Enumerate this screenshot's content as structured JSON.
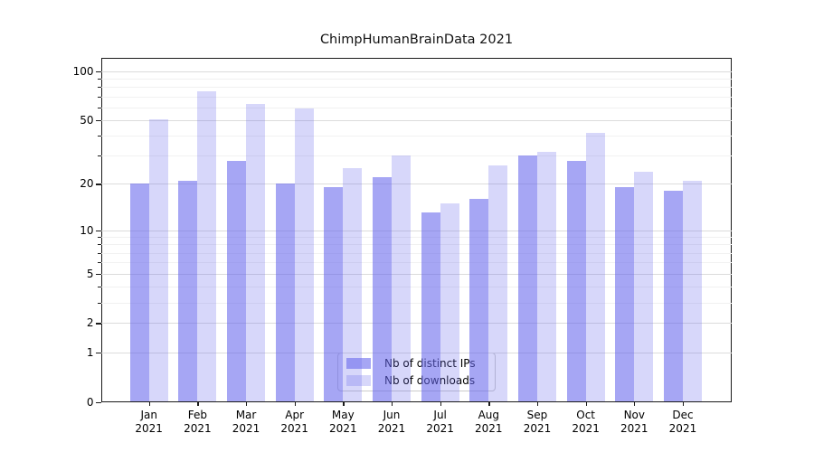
{
  "title": "ChimpHumanBrainData 2021",
  "chart_data": {
    "type": "bar",
    "title": "ChimpHumanBrainData 2021",
    "categories": [
      "Jan",
      "Feb",
      "Mar",
      "Apr",
      "May",
      "Jun",
      "Jul",
      "Aug",
      "Sep",
      "Oct",
      "Nov",
      "Dec"
    ],
    "x_year_label": "2021",
    "series": [
      {
        "name": "Nb of distinct IPs",
        "values": [
          20,
          21,
          28,
          20,
          19,
          22,
          13,
          16,
          30,
          28,
          19,
          18
        ],
        "color": "#6666ec",
        "alpha": 0.58
      },
      {
        "name": "Nb of downloads",
        "values": [
          51,
          75,
          63,
          59,
          25,
          30,
          15,
          26,
          32,
          42,
          24,
          21
        ],
        "color": "#6666ec",
        "alpha": 0.26
      }
    ],
    "yscale": "log1p",
    "ylim": [
      0,
      121
    ],
    "y_major_ticks": [
      0,
      1,
      2,
      5,
      10,
      20,
      50,
      100
    ],
    "y_minor_ticks": [
      3,
      4,
      6,
      7,
      8,
      9,
      30,
      40,
      60,
      70,
      80,
      90
    ],
    "grid": true,
    "legend_position": "bottom-center"
  }
}
